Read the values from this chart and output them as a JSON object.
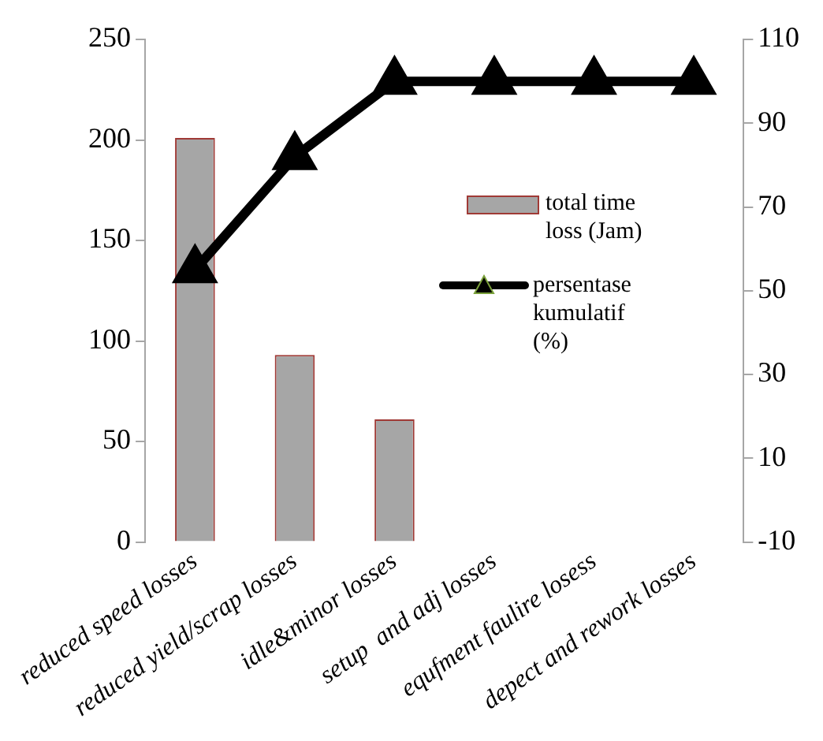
{
  "chart_data": {
    "type": "bar",
    "categories": [
      "reduced speed losses",
      "reduced yield/scrap losses",
      "idle&minor losses",
      "setup  and adj losses",
      "equfment faulire losess",
      "depect and rework losses"
    ],
    "series": [
      {
        "name": "total time loss (Jam)",
        "color": "#a6a6a6",
        "values": [
          201,
          93,
          61,
          0,
          0,
          0
        ]
      },
      {
        "name": "persentase kumulatif (%)",
        "type": "line",
        "axis": "y2",
        "color": "#000000",
        "marker": "triangle",
        "line_style": "solid",
        "values": [
          55,
          82,
          100,
          100,
          100,
          100
        ]
      }
    ],
    "ylim": [
      0,
      250
    ],
    "yticks": [
      0,
      50,
      100,
      150,
      200,
      250
    ],
    "y2lim": [
      -10,
      110
    ],
    "y2ticks": [
      -10,
      10,
      30,
      50,
      70,
      90,
      110
    ],
    "grid": false,
    "legend": "right"
  }
}
